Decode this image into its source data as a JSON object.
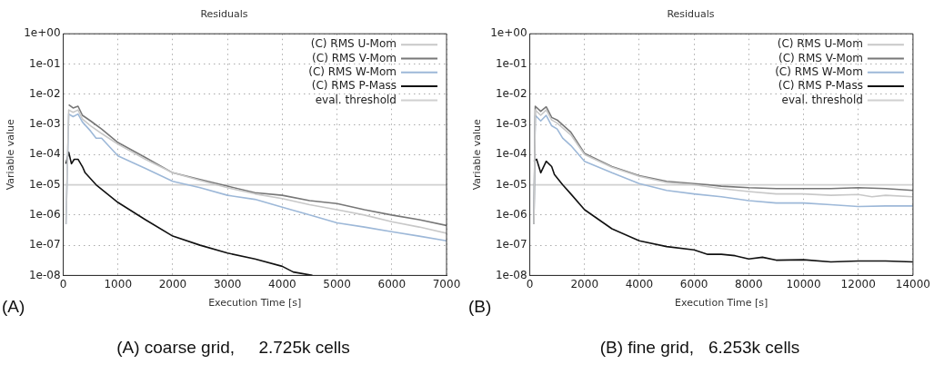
{
  "chart_data": [
    {
      "type": "line",
      "title": "Residuals",
      "xlabel": "Execution Time [s]",
      "ylabel": "Variable value",
      "log": "y",
      "grid": true,
      "legend": "top right",
      "line_style": "solid",
      "marker": "none",
      "xlim": [
        0,
        7000
      ],
      "xticks": [
        0,
        1000,
        2000,
        3000,
        4000,
        5000,
        6000,
        7000
      ],
      "ylim": [
        1e-08,
        1
      ],
      "yticks": [
        {
          "value": 1e-08,
          "label": "1e-08"
        },
        {
          "value": 1e-07,
          "label": "1e-07"
        },
        {
          "value": 1e-06,
          "label": "1e-06"
        },
        {
          "value": 1e-05,
          "label": "1e-05"
        },
        {
          "value": 0.0001,
          "label": "1e-04"
        },
        {
          "value": 0.001,
          "label": "1e-03"
        },
        {
          "value": 0.01,
          "label": "1e-02"
        },
        {
          "value": 0.1,
          "label": "1e-01"
        },
        {
          "value": 1,
          "label": "1e+00"
        }
      ],
      "series": [
        {
          "name": "(C) RMS U-Mom",
          "color": "#c8c8c8",
          "x": [
            50,
            100,
            180,
            270,
            350,
            500,
            700,
            1000,
            1500,
            2000,
            2500,
            3000,
            3500,
            4000,
            4500,
            5000,
            5500,
            6000,
            6500,
            7000
          ],
          "values": [
            5e-07,
            0.003,
            0.0025,
            0.003,
            0.0015,
            0.0009,
            0.0005,
            0.00022,
            7e-05,
            2.5e-05,
            1.4e-05,
            8e-06,
            5e-06,
            3.5e-06,
            2.2e-06,
            1.5e-06,
            1e-06,
            6e-07,
            4e-07,
            2.5e-07
          ]
        },
        {
          "name": "(C) RMS V-Mom",
          "color": "#777777",
          "x": [
            100,
            180,
            270,
            350,
            500,
            700,
            1000,
            1500,
            2000,
            2500,
            3000,
            3500,
            4000,
            4500,
            5000,
            5500,
            6000,
            6500,
            7000
          ],
          "values": [
            0.0045,
            0.0035,
            0.004,
            0.002,
            0.0013,
            0.0007,
            0.00025,
            8e-05,
            2.5e-05,
            1.5e-05,
            9e-06,
            5.5e-06,
            4.5e-06,
            3e-06,
            2.4e-06,
            1.5e-06,
            1e-06,
            7e-07,
            4.5e-07
          ]
        },
        {
          "name": "(C) RMS W-Mom",
          "color": "#9db8d8",
          "x": [
            50,
            100,
            180,
            270,
            350,
            500,
            600,
            700,
            1000,
            1500,
            2000,
            2500,
            3000,
            3500,
            4000,
            4500,
            5000,
            5500,
            6000,
            6500,
            7000
          ],
          "values": [
            5e-07,
            0.0022,
            0.0018,
            0.0022,
            0.0012,
            0.0006,
            0.00035,
            0.00035,
            9e-05,
            3.5e-05,
            1.3e-05,
            8e-06,
            4.5e-06,
            3.3e-06,
            1.8e-06,
            1e-06,
            5.5e-07,
            4e-07,
            2.8e-07,
            2e-07,
            1.4e-07
          ]
        },
        {
          "name": "(C) RMS P-Mass",
          "color": "#111111",
          "x": [
            50,
            100,
            150,
            200,
            270,
            350,
            400,
            600,
            1000,
            1500,
            2000,
            2500,
            3000,
            3500,
            4000,
            4200,
            4550
          ],
          "values": [
            5e-05,
            0.00012,
            5e-05,
            7e-05,
            7e-05,
            4e-05,
            2.5e-05,
            1e-05,
            2.6e-06,
            7e-07,
            2e-07,
            1e-07,
            5.5e-08,
            3.5e-08,
            2e-08,
            1.3e-08,
            1e-08
          ]
        }
      ],
      "ref_lines": [
        {
          "axis": "y",
          "value": 1e-05,
          "label": "eval. threshold",
          "color": "#d0d0d0"
        }
      ],
      "annotations": [
        "(A)",
        "(A) coarse grid,     2.725k cells"
      ]
    },
    {
      "type": "line",
      "title": "Residuals",
      "xlabel": "Execution Time [s]",
      "ylabel": "Variable value",
      "log": "y",
      "grid": true,
      "legend": "top right",
      "line_style": "solid",
      "marker": "none",
      "xlim": [
        0,
        14000
      ],
      "xticks": [
        0,
        2000,
        4000,
        6000,
        8000,
        10000,
        12000,
        14000
      ],
      "ylim": [
        1e-08,
        1
      ],
      "yticks": [
        {
          "value": 1e-08,
          "label": "1e-08"
        },
        {
          "value": 1e-07,
          "label": "1e-07"
        },
        {
          "value": 1e-06,
          "label": "1e-06"
        },
        {
          "value": 1e-05,
          "label": "1e-05"
        },
        {
          "value": 0.0001,
          "label": "1e-04"
        },
        {
          "value": 0.001,
          "label": "1e-03"
        },
        {
          "value": 0.01,
          "label": "1e-02"
        },
        {
          "value": 0.1,
          "label": "1e-01"
        },
        {
          "value": 1,
          "label": "1e+00"
        }
      ],
      "series": [
        {
          "name": "(C) RMS U-Mom",
          "color": "#c8c8c8",
          "x": [
            150,
            200,
            400,
            600,
            800,
            1000,
            1500,
            2000,
            3000,
            4000,
            5000,
            6000,
            7000,
            8000,
            9000,
            10000,
            11000,
            12000,
            12500,
            13000,
            14000
          ],
          "values": [
            5e-07,
            0.003,
            0.002,
            0.003,
            0.0014,
            0.0011,
            0.00045,
            0.0001,
            3.8e-05,
            1.9e-05,
            1.2e-05,
            1e-05,
            7.5e-06,
            6e-06,
            5e-06,
            5e-06,
            4.5e-06,
            4.8e-06,
            4e-06,
            4.5e-06,
            4e-06
          ]
        },
        {
          "name": "(C) RMS V-Mom",
          "color": "#777777",
          "x": [
            150,
            200,
            400,
            600,
            800,
            1000,
            1500,
            2000,
            3000,
            4000,
            5000,
            6000,
            6500,
            7000,
            8000,
            9000,
            10000,
            11000,
            12000,
            13000,
            14000
          ],
          "values": [
            5e-07,
            0.004,
            0.0027,
            0.0038,
            0.0017,
            0.0014,
            0.00055,
            0.00011,
            4e-05,
            2e-05,
            1.3e-05,
            1.1e-05,
            1e-05,
            9e-06,
            8e-06,
            7.5e-06,
            7.5e-06,
            7.5e-06,
            8e-06,
            7.5e-06,
            6.5e-06
          ]
        },
        {
          "name": "(C) RMS W-Mom",
          "color": "#9db8d8",
          "x": [
            150,
            200,
            400,
            600,
            800,
            1000,
            1200,
            1500,
            2000,
            3000,
            4000,
            5000,
            6000,
            7000,
            8000,
            9000,
            10000,
            11000,
            12000,
            13000,
            14000
          ],
          "values": [
            5e-07,
            0.002,
            0.0013,
            0.002,
            0.0009,
            0.0007,
            0.00035,
            0.0002,
            6e-05,
            2.5e-05,
            1.1e-05,
            6.5e-06,
            5e-06,
            4e-06,
            3e-06,
            2.5e-06,
            2.5e-06,
            2.2e-06,
            1.9e-06,
            2e-06,
            2e-06
          ]
        },
        {
          "name": "(C) RMS P-Mass",
          "color": "#111111",
          "x": [
            150,
            250,
            400,
            600,
            800,
            900,
            1200,
            1500,
            2000,
            3000,
            4000,
            5000,
            6000,
            6500,
            7000,
            7500,
            8000,
            8500,
            9000,
            10000,
            11000,
            12000,
            13000,
            14000
          ],
          "values": [
            6e-05,
            7e-05,
            2.5e-05,
            6e-05,
            4e-05,
            2.2e-05,
            1e-05,
            5e-06,
            1.5e-06,
            3.5e-07,
            1.4e-07,
            9e-08,
            7e-08,
            5e-08,
            5e-08,
            4.5e-08,
            3.5e-08,
            4e-08,
            3.2e-08,
            3.3e-08,
            2.8e-08,
            3e-08,
            3e-08,
            2.8e-08
          ]
        }
      ],
      "ref_lines": [
        {
          "axis": "y",
          "value": 1e-05,
          "label": "eval. threshold",
          "color": "#d0d0d0"
        }
      ],
      "annotations": [
        "(B)",
        "(B) fine grid,   6.253k cells"
      ]
    }
  ]
}
